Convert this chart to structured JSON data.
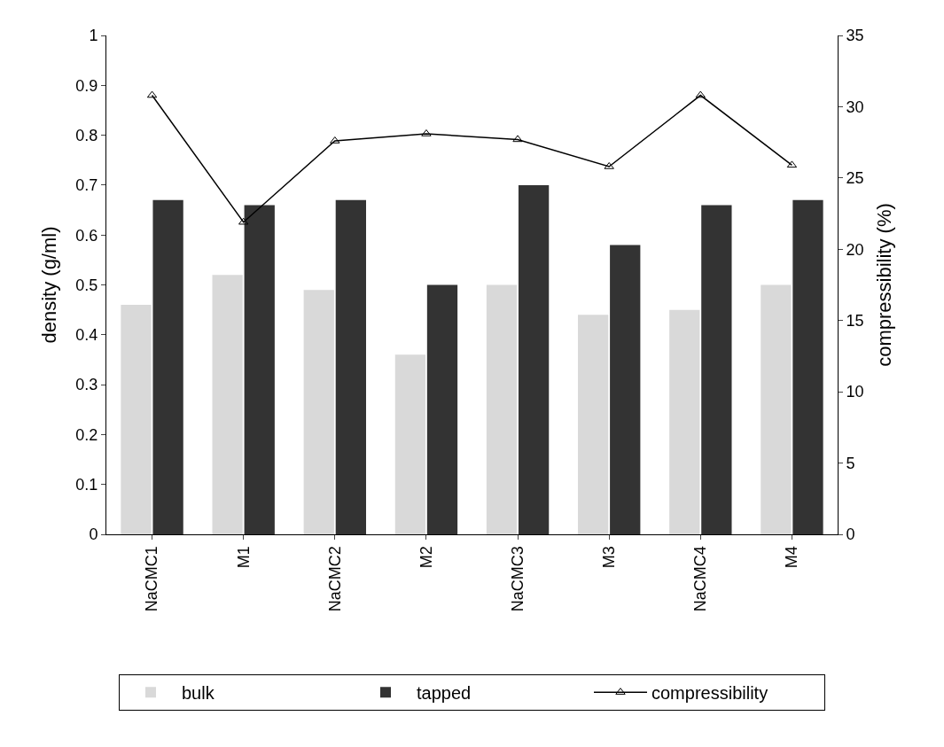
{
  "chart_data": {
    "type": "bar",
    "categories": [
      "NaCMC1",
      "M1",
      "NaCMC2",
      "M2",
      "NaCMC3",
      "M3",
      "NaCMC4",
      "M4"
    ],
    "ylabel": "density (g/ml)",
    "y2label": "compressibility (%)",
    "series": [
      {
        "name": "bulk",
        "color": "#d9d9d9",
        "values": [
          0.46,
          0.52,
          0.49,
          0.36,
          0.5,
          0.44,
          0.45,
          0.5
        ]
      },
      {
        "name": "tapped",
        "color": "#333333",
        "values": [
          0.67,
          0.66,
          0.67,
          0.5,
          0.7,
          0.58,
          0.66,
          0.67
        ]
      },
      {
        "name": "compressibility",
        "type": "line",
        "axis": "y2",
        "color": "#000000",
        "marker": "triangle",
        "values": [
          30.8,
          21.9,
          27.6,
          28.1,
          27.7,
          25.8,
          30.8,
          25.9
        ]
      }
    ],
    "ylim": [
      0,
      1
    ],
    "yticks": [
      0,
      0.1,
      0.2,
      0.3,
      0.4,
      0.5,
      0.6,
      0.7,
      0.8,
      0.9,
      1
    ],
    "y2lim": [
      0,
      35
    ],
    "y2ticks": [
      0,
      5,
      10,
      15,
      20,
      25,
      30,
      35
    ],
    "legend": "bottom"
  }
}
